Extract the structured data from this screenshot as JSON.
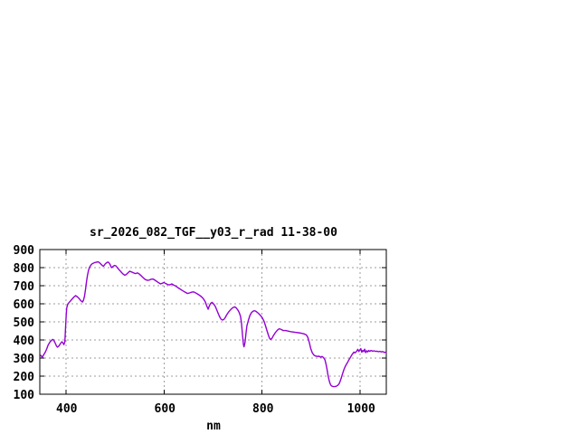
{
  "window": {
    "background_color": "#ffffff"
  },
  "chart_data": {
    "type": "line",
    "title": "sr_2026_082_TGF__y03_r_rad 11-38-00",
    "xlabel": "nm",
    "ylabel": "",
    "x_range": [
      347,
      1053
    ],
    "y_range": [
      100,
      900
    ],
    "x_ticks": [
      400,
      600,
      800,
      1000
    ],
    "y_ticks": [
      100,
      200,
      300,
      400,
      500,
      600,
      700,
      800,
      900
    ],
    "grid": true,
    "grid_style": "dashed",
    "legend_position": "none",
    "line_color": "#9400d3",
    "grid_color": "#9e9e9e",
    "axis_color": "#000000",
    "series": [
      {
        "name": "sr_2026_082_TGF__y03_r_rad",
        "points": [
          [
            349,
            315
          ],
          [
            352,
            304
          ],
          [
            355,
            318
          ],
          [
            358,
            332
          ],
          [
            361,
            350
          ],
          [
            364,
            372
          ],
          [
            368,
            390
          ],
          [
            371,
            398
          ],
          [
            373,
            403
          ],
          [
            375,
            400
          ],
          [
            378,
            385
          ],
          [
            381,
            367
          ],
          [
            383,
            360
          ],
          [
            386,
            367
          ],
          [
            389,
            380
          ],
          [
            392,
            390
          ],
          [
            394,
            384
          ],
          [
            396,
            374
          ],
          [
            398,
            390
          ],
          [
            399,
            440
          ],
          [
            400,
            500
          ],
          [
            401,
            548
          ],
          [
            402,
            578
          ],
          [
            404,
            597
          ],
          [
            406,
            605
          ],
          [
            409,
            614
          ],
          [
            412,
            624
          ],
          [
            415,
            633
          ],
          [
            418,
            641
          ],
          [
            420,
            645
          ],
          [
            423,
            640
          ],
          [
            426,
            632
          ],
          [
            429,
            622
          ],
          [
            432,
            614
          ],
          [
            434,
            610
          ],
          [
            436,
            620
          ],
          [
            438,
            642
          ],
          [
            440,
            678
          ],
          [
            442,
            718
          ],
          [
            444,
            755
          ],
          [
            446,
            782
          ],
          [
            448,
            800
          ],
          [
            451,
            814
          ],
          [
            454,
            822
          ],
          [
            458,
            827
          ],
          [
            462,
            830
          ],
          [
            466,
            832
          ],
          [
            469,
            826
          ],
          [
            472,
            818
          ],
          [
            475,
            810
          ],
          [
            477,
            808
          ],
          [
            480,
            820
          ],
          [
            484,
            829
          ],
          [
            487,
            830
          ],
          [
            490,
            818
          ],
          [
            493,
            800
          ],
          [
            496,
            806
          ],
          [
            499,
            812
          ],
          [
            502,
            810
          ],
          [
            505,
            800
          ],
          [
            508,
            790
          ],
          [
            511,
            781
          ],
          [
            514,
            772
          ],
          [
            517,
            764
          ],
          [
            520,
            758
          ],
          [
            523,
            762
          ],
          [
            527,
            772
          ],
          [
            530,
            780
          ],
          [
            534,
            776
          ],
          [
            538,
            771
          ],
          [
            542,
            767
          ],
          [
            546,
            771
          ],
          [
            550,
            764
          ],
          [
            554,
            754
          ],
          [
            558,
            743
          ],
          [
            562,
            734
          ],
          [
            566,
            730
          ],
          [
            570,
            731
          ],
          [
            574,
            736
          ],
          [
            578,
            737
          ],
          [
            582,
            730
          ],
          [
            586,
            722
          ],
          [
            590,
            715
          ],
          [
            593,
            710
          ],
          [
            597,
            714
          ],
          [
            600,
            718
          ],
          [
            604,
            711
          ],
          [
            608,
            706
          ],
          [
            612,
            705
          ],
          [
            616,
            710
          ],
          [
            620,
            703
          ],
          [
            624,
            698
          ],
          [
            628,
            690
          ],
          [
            632,
            683
          ],
          [
            636,
            676
          ],
          [
            640,
            669
          ],
          [
            644,
            663
          ],
          [
            648,
            657
          ],
          [
            652,
            660
          ],
          [
            656,
            664
          ],
          [
            660,
            666
          ],
          [
            664,
            661
          ],
          [
            668,
            655
          ],
          [
            672,
            648
          ],
          [
            676,
            640
          ],
          [
            680,
            629
          ],
          [
            684,
            612
          ],
          [
            687,
            590
          ],
          [
            690,
            570
          ],
          [
            692,
            586
          ],
          [
            695,
            602
          ],
          [
            698,
            608
          ],
          [
            701,
            600
          ],
          [
            704,
            588
          ],
          [
            707,
            570
          ],
          [
            710,
            550
          ],
          [
            713,
            530
          ],
          [
            716,
            516
          ],
          [
            719,
            510
          ],
          [
            722,
            513
          ],
          [
            725,
            525
          ],
          [
            728,
            540
          ],
          [
            732,
            556
          ],
          [
            736,
            568
          ],
          [
            740,
            578
          ],
          [
            744,
            583
          ],
          [
            747,
            578
          ],
          [
            750,
            568
          ],
          [
            753,
            553
          ],
          [
            756,
            530
          ],
          [
            758,
            490
          ],
          [
            760,
            430
          ],
          [
            762,
            375
          ],
          [
            763,
            362
          ],
          [
            765,
            385
          ],
          [
            767,
            432
          ],
          [
            769,
            478
          ],
          [
            772,
            510
          ],
          [
            775,
            535
          ],
          [
            778,
            550
          ],
          [
            781,
            558
          ],
          [
            784,
            562
          ],
          [
            787,
            559
          ],
          [
            790,
            553
          ],
          [
            794,
            543
          ],
          [
            798,
            531
          ],
          [
            801,
            519
          ],
          [
            804,
            503
          ],
          [
            807,
            478
          ],
          [
            810,
            450
          ],
          [
            813,
            425
          ],
          [
            815,
            410
          ],
          [
            817,
            403
          ],
          [
            820,
            409
          ],
          [
            823,
            424
          ],
          [
            827,
            441
          ],
          [
            831,
            454
          ],
          [
            835,
            462
          ],
          [
            839,
            458
          ],
          [
            843,
            452
          ],
          [
            848,
            452
          ],
          [
            853,
            449
          ],
          [
            858,
            446
          ],
          [
            863,
            444
          ],
          [
            868,
            442
          ],
          [
            874,
            440
          ],
          [
            880,
            437
          ],
          [
            885,
            434
          ],
          [
            890,
            428
          ],
          [
            893,
            415
          ],
          [
            896,
            388
          ],
          [
            899,
            352
          ],
          [
            902,
            330
          ],
          [
            905,
            318
          ],
          [
            908,
            312
          ],
          [
            912,
            309
          ],
          [
            916,
            310
          ],
          [
            919,
            305
          ],
          [
            922,
            309
          ],
          [
            925,
            303
          ],
          [
            928,
            290
          ],
          [
            930,
            268
          ],
          [
            932,
            240
          ],
          [
            934,
            210
          ],
          [
            936,
            183
          ],
          [
            938,
            162
          ],
          [
            940,
            150
          ],
          [
            942,
            145
          ],
          [
            945,
            142
          ],
          [
            948,
            142
          ],
          [
            951,
            144
          ],
          [
            954,
            149
          ],
          [
            957,
            158
          ],
          [
            959,
            172
          ],
          [
            961,
            188
          ],
          [
            963,
            206
          ],
          [
            965,
            223
          ],
          [
            967,
            238
          ],
          [
            969,
            251
          ],
          [
            971,
            262
          ],
          [
            973,
            271
          ],
          [
            975,
            281
          ],
          [
            977,
            291
          ],
          [
            979,
            300
          ],
          [
            981,
            309
          ],
          [
            983,
            318
          ],
          [
            985,
            326
          ],
          [
            987,
            333
          ],
          [
            989,
            328
          ],
          [
            991,
            333
          ],
          [
            993,
            340
          ],
          [
            995,
            348
          ],
          [
            997,
            336
          ],
          [
            999,
            344
          ],
          [
            1001,
            352
          ],
          [
            1003,
            332
          ],
          [
            1005,
            342
          ],
          [
            1007,
            336
          ],
          [
            1009,
            349
          ],
          [
            1011,
            330
          ],
          [
            1013,
            340
          ],
          [
            1015,
            334
          ],
          [
            1017,
            342
          ],
          [
            1019,
            337
          ],
          [
            1022,
            342
          ],
          [
            1025,
            338
          ],
          [
            1028,
            340
          ],
          [
            1031,
            337
          ],
          [
            1034,
            338
          ],
          [
            1037,
            335
          ],
          [
            1040,
            337
          ],
          [
            1043,
            334
          ],
          [
            1046,
            336
          ],
          [
            1049,
            331
          ],
          [
            1052,
            333
          ]
        ]
      }
    ]
  }
}
